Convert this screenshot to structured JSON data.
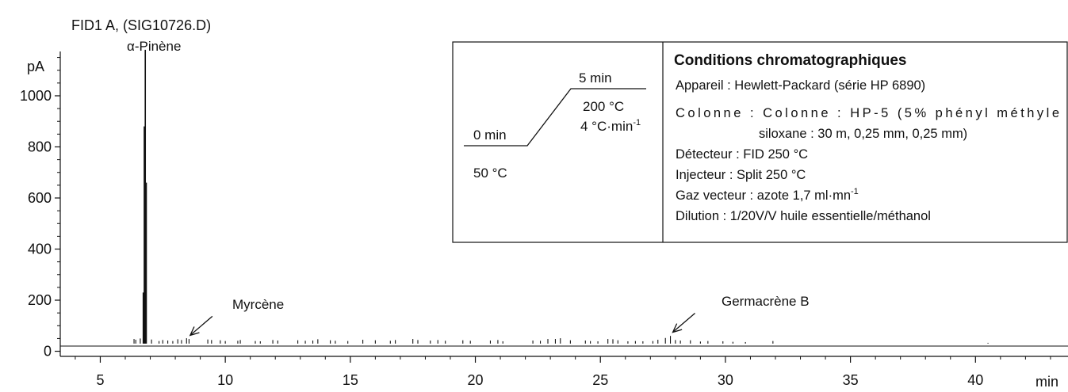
{
  "chart_data": {
    "type": "line",
    "title": "FID1 A, (SIG10726.D)",
    "ylabel": "pA",
    "xlabel": "min",
    "xlim": [
      3.4,
      43.7
    ],
    "ylim": [
      -20,
      1220
    ],
    "x_ticks": [
      5,
      10,
      15,
      20,
      25,
      30,
      35,
      40
    ],
    "y_ticks": [
      0,
      200,
      400,
      600,
      800,
      1000
    ],
    "baseline": 30,
    "grid": false,
    "series": [
      {
        "x": [
          6.35,
          6.42,
          6.6,
          6.72,
          6.76,
          6.8,
          6.84,
          7.05,
          7.35,
          7.5,
          7.7,
          7.9,
          8.1,
          8.25,
          8.45,
          8.55,
          9.3,
          9.45,
          9.8,
          10.0,
          10.5,
          10.6,
          11.2,
          11.4,
          11.9,
          12.1,
          12.9,
          13.2,
          13.5,
          13.7,
          14.2,
          14.4,
          14.9,
          15.5,
          16.0,
          16.6,
          16.8,
          17.5,
          17.7,
          18.2,
          18.5,
          18.8,
          19.5,
          19.8,
          20.6,
          20.9,
          21.1,
          22.3,
          22.6,
          22.9,
          23.2,
          23.4,
          23.8,
          24.4,
          24.6,
          24.9,
          25.3,
          25.5,
          25.7,
          26.1,
          26.4,
          26.7,
          27.1,
          27.3,
          27.6,
          27.8,
          28.0,
          28.2,
          28.6,
          29.0,
          29.3,
          29.9,
          30.3,
          30.8,
          31.9,
          40.5
        ],
        "values": [
          48,
          45,
          50,
          230,
          880,
          1180,
          660,
          46,
          40,
          44,
          42,
          40,
          47,
          44,
          51,
          48,
          46,
          44,
          43,
          40,
          41,
          44,
          40,
          39,
          44,
          42,
          43,
          41,
          42,
          47,
          43,
          41,
          40,
          45,
          43,
          41,
          44,
          48,
          44,
          42,
          44,
          41,
          43,
          41,
          42,
          44,
          39,
          42,
          41,
          48,
          48,
          51,
          43,
          42,
          40,
          39,
          48,
          47,
          43,
          39,
          40,
          39,
          40,
          45,
          52,
          60,
          44,
          42,
          43,
          38,
          40,
          39,
          37,
          36,
          40,
          33
        ]
      }
    ],
    "annotations": {
      "alpha_pinene": "α-Pinène",
      "myrcene": "Myrcène",
      "germacrene": "Germacrène B"
    },
    "annotation_points": [
      {
        "key": "myrcene",
        "x": 8.5,
        "y": 50
      },
      {
        "key": "germacrene",
        "x": 27.8,
        "y": 62
      }
    ]
  },
  "inset": {
    "program": {
      "final_time": "5 min",
      "final_temp": "200 °C",
      "rate": "4 °C·min",
      "rate_exp": "-1",
      "initial_time": "0 min",
      "initial_temp": "50 °C"
    },
    "conditions_title": "Conditions chromatographiques",
    "lines": [
      "Appareil : Hewlett-Packard (série HP 6890)",
      "Colonne : Colonne : HP-5 (5% phényl méthyle",
      "siloxane : 30 m, 0,25 mm, 0,25 mm)",
      "Détecteur : FID 250 °C",
      "Injecteur : Split 250 °C"
    ],
    "gas_line": "Gaz vecteur : azote 1,7 ml·mn",
    "gas_exp": "-1",
    "dilution_line": "Dilution : 1/20V/V huile essentielle/méthanol"
  }
}
